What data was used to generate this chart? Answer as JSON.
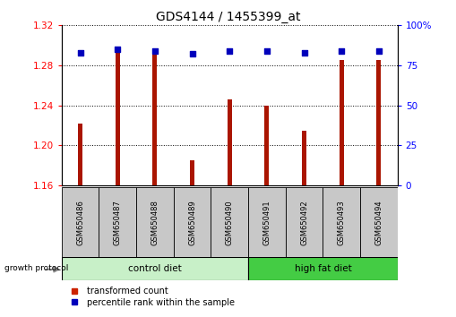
{
  "title": "GDS4144 / 1455399_at",
  "samples": [
    "GSM650486",
    "GSM650487",
    "GSM650488",
    "GSM650489",
    "GSM650490",
    "GSM650491",
    "GSM650492",
    "GSM650493",
    "GSM650494"
  ],
  "transformed_count": [
    1.222,
    1.295,
    1.295,
    1.185,
    1.246,
    1.24,
    1.215,
    1.285,
    1.285
  ],
  "percentile_rank": [
    83,
    85,
    84,
    82,
    84,
    84,
    83,
    84,
    84
  ],
  "ylim_left": [
    1.16,
    1.32
  ],
  "ylim_right": [
    0,
    100
  ],
  "yticks_left": [
    1.16,
    1.2,
    1.24,
    1.28,
    1.32
  ],
  "yticks_right": [
    0,
    25,
    50,
    75,
    100
  ],
  "bar_color": "#AA1500",
  "dot_color": "#0000BB",
  "control_color": "#C8F0C8",
  "high_fat_color": "#44CC44",
  "sample_box_color": "#C8C8C8",
  "legend_bar_color": "#CC2200",
  "legend_dot_color": "#0000BB",
  "bar_width": 0.12
}
